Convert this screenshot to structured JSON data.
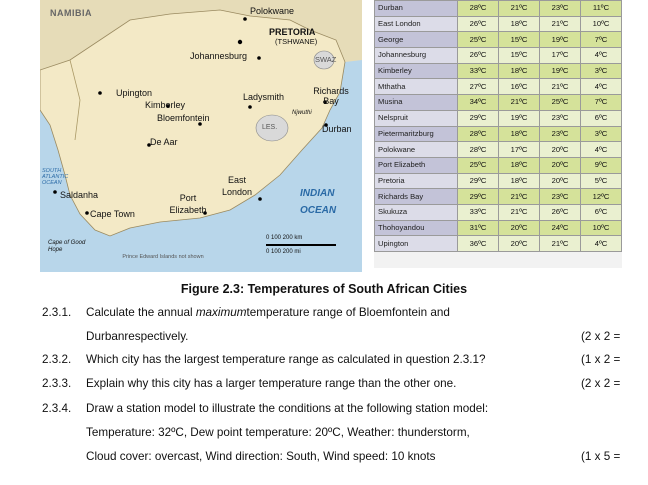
{
  "map": {
    "labels": {
      "namibia": "NAMIBIA",
      "polokwane": "Polokwane",
      "pretoria": "PRETORIA",
      "tshwane": "(TSHWANE)",
      "johannesburg": "Johannesburg",
      "swaz": "SWAZ",
      "upington": "Upington",
      "kimberley": "Kimberley",
      "bloemfontein": "Bloemfontein",
      "ladysmith": "Ladysmith",
      "richards_bay": "Richards Bay",
      "njwuthi": "Njwuthi",
      "durban": "Durban",
      "les": "LES.",
      "de_aar": "De Aar",
      "south_atlantic": "SOUTH ATLANTIC OCEAN",
      "saldanha": "Saldanha",
      "cape_town": "Cape Town",
      "port_elizabeth": "Port Elizabeth",
      "east_london": "East London",
      "indian_ocean_1": "INDIAN",
      "indian_ocean_2": "OCEAN",
      "cape_good_hope": "Cape of Good Hope",
      "prince_edward": "Prince Edward Islands not shown",
      "scale_km": "0   100  200 km",
      "scale_mi": "0        100     200 mi"
    }
  },
  "table": {
    "rows": [
      {
        "city": "Durban",
        "v": [
          "28ºC",
          "21ºC",
          "23ºC",
          "11ºC"
        ]
      },
      {
        "city": "East London",
        "v": [
          "26ºC",
          "18ºC",
          "21ºC",
          "10ºC"
        ]
      },
      {
        "city": "George",
        "v": [
          "25ºC",
          "15ºC",
          "19ºC",
          "7ºC"
        ]
      },
      {
        "city": "Johannesburg",
        "v": [
          "26ºC",
          "15ºC",
          "17ºC",
          "4ºC"
        ]
      },
      {
        "city": "Kimberley",
        "v": [
          "33ºC",
          "18ºC",
          "19ºC",
          "3ºC"
        ]
      },
      {
        "city": "Mthatha",
        "v": [
          "27ºC",
          "16ºC",
          "21ºC",
          "4ºC"
        ]
      },
      {
        "city": "Musina",
        "v": [
          "34ºC",
          "21ºC",
          "25ºC",
          "7ºC"
        ]
      },
      {
        "city": "Nelspruit",
        "v": [
          "29ºC",
          "19ºC",
          "23ºC",
          "6ºC"
        ]
      },
      {
        "city": "Pietermaritzburg",
        "v": [
          "28ºC",
          "18ºC",
          "23ºC",
          "3ºC"
        ]
      },
      {
        "city": "Polokwane",
        "v": [
          "28ºC",
          "17ºC",
          "20ºC",
          "4ºC"
        ]
      },
      {
        "city": "Port Elizabeth",
        "v": [
          "25ºC",
          "18ºC",
          "20ºC",
          "9ºC"
        ]
      },
      {
        "city": "Pretoria",
        "v": [
          "29ºC",
          "18ºC",
          "20ºC",
          "5ºC"
        ]
      },
      {
        "city": "Richards Bay",
        "v": [
          "29ºC",
          "21ºC",
          "23ºC",
          "12ºC"
        ]
      },
      {
        "city": "Skukuza",
        "v": [
          "33ºC",
          "21ºC",
          "26ºC",
          "6ºC"
        ]
      },
      {
        "city": "Thohoyandou",
        "v": [
          "31ºC",
          "20ºC",
          "24ºC",
          "10ºC"
        ]
      },
      {
        "city": "Upington",
        "v": [
          "36ºC",
          "20ºC",
          "21ºC",
          "4ºC"
        ]
      }
    ]
  },
  "caption": "Figure 2.3: Temperatures of South African Cities",
  "questions": {
    "q1": {
      "num": "2.3.1.",
      "text_a": "Calculate the annual ",
      "text_em": "maximum",
      "text_b": "temperature range of Bloemfontein and",
      "line2": "Durbanrespectively.",
      "marks": "(2 x 2 ="
    },
    "q2": {
      "num": "2.3.2.",
      "text": "Which city has the largest temperature range as calculated in question 2.3.1?",
      "marks": "(1 x 2 ="
    },
    "q3": {
      "num": "2.3.3.",
      "text": "Explain why this city has a larger temperature range than the other one.",
      "marks": "(2 x 2 ="
    },
    "q4": {
      "num": "2.3.4.",
      "text": "Draw a station model to illustrate the conditions at the following station model:",
      "line2": "Temperature: 32ºC, Dew point temperature:  20ºC, Weather: thunderstorm,",
      "line3": "Cloud cover: overcast, Wind direction: South, Wind speed: 10 knots",
      "marks": "(1 x 5 ="
    }
  }
}
